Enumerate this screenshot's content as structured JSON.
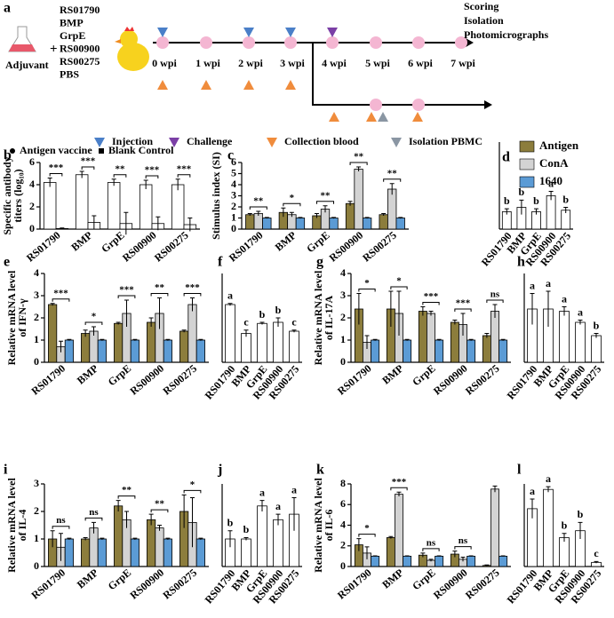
{
  "schematic": {
    "panel": "a",
    "adjuvant": "Adjuvant",
    "plus": "+",
    "vaccines": [
      "RS01790",
      "BMP",
      "GrpE",
      "RS00900",
      "RS00275",
      "PBS"
    ],
    "timepoints": [
      "0 wpi",
      "1 wpi",
      "2 wpi",
      "3 wpi",
      "4 wpi",
      "5 wpi",
      "6 wpi",
      "7 wpi"
    ],
    "endpoints": [
      "Scoring",
      "Isolation",
      "Photomicrographs"
    ],
    "legend": [
      "Injection",
      "Challenge",
      "Collection blood",
      "Isolation PBMC"
    ]
  },
  "chart_data": [
    {
      "type": "bar",
      "panel": "b",
      "ylabel": [
        "Specific antibody",
        "titers (log₁₀)"
      ],
      "categories": [
        "RS01790",
        "BMP",
        "GrpE",
        "RS00900",
        "RS00275"
      ],
      "series": [
        {
          "name": "Antigen vaccine",
          "marker": "circle",
          "color": "#ffffff",
          "values": [
            4.2,
            4.9,
            4.2,
            4.0,
            4.0
          ],
          "errors": [
            0.4,
            0.3,
            0.3,
            0.4,
            0.5
          ]
        },
        {
          "name": "Blank Control",
          "marker": "square",
          "color": "#ffffff",
          "values": [
            0.05,
            0.6,
            0.5,
            0.5,
            0.4
          ],
          "errors": [
            0.05,
            0.6,
            1.0,
            0.6,
            0.6
          ]
        }
      ],
      "ylim": [
        0,
        6
      ],
      "yticks": [
        0,
        2,
        4,
        6
      ],
      "significance": [
        "***",
        "***",
        "**",
        "***",
        "***"
      ]
    },
    {
      "type": "bar",
      "panel": "c",
      "ylabel": [
        "Stimulus index (SI)"
      ],
      "categories": [
        "RS01790",
        "BMP",
        "GrpE",
        "RS00900",
        "RS00275"
      ],
      "series": [
        {
          "name": "Antigen",
          "color": "#8c7d3c",
          "values": [
            1.3,
            1.5,
            1.2,
            2.3,
            1.3
          ],
          "errors": [
            0.1,
            0.4,
            0.2,
            0.2,
            0.1
          ]
        },
        {
          "name": "ConA",
          "color": "#d3d3d3",
          "values": [
            1.4,
            1.3,
            1.8,
            5.4,
            3.6
          ],
          "errors": [
            0.2,
            0.2,
            0.3,
            0.2,
            0.5
          ]
        },
        {
          "name": "1640",
          "color": "#5b9bd5",
          "values": [
            1.0,
            1.0,
            1.0,
            1.0,
            1.0
          ],
          "errors": [
            0.05,
            0.05,
            0.05,
            0.05,
            0.05
          ]
        }
      ],
      "ylim": [
        0,
        6
      ],
      "yticks": [
        0,
        1,
        2,
        3,
        4,
        5,
        6
      ],
      "significance": [
        "**",
        "*",
        "**",
        "**",
        "**"
      ]
    },
    {
      "type": "bar",
      "panel": "d",
      "categories": [
        "RS01790",
        "BMP",
        "GrpE",
        "RS00900",
        "RS00275"
      ],
      "color": "#ffffff",
      "values": [
        1.2,
        1.5,
        1.2,
        2.3,
        1.3
      ],
      "errors": [
        0.2,
        0.5,
        0.2,
        0.3,
        0.2
      ],
      "ylim": [
        0,
        6
      ],
      "letters": [
        "b",
        "b",
        "b",
        "a",
        "b"
      ]
    },
    {
      "type": "bar",
      "panel": "e",
      "ylabel": [
        "Relative mRNA level",
        "of IFN-γ"
      ],
      "categories": [
        "RS01790",
        "BMP",
        "GrpE",
        "RS00900",
        "RS00275"
      ],
      "series": [
        {
          "color": "#8c7d3c",
          "values": [
            2.6,
            1.3,
            1.75,
            1.8,
            1.4
          ],
          "errors": [
            0.05,
            0.15,
            0.05,
            0.2,
            0.05
          ]
        },
        {
          "color": "#d3d3d3",
          "values": [
            0.7,
            1.4,
            2.2,
            2.2,
            2.6
          ],
          "errors": [
            0.25,
            0.2,
            0.6,
            0.7,
            0.3
          ]
        },
        {
          "color": "#5b9bd5",
          "values": [
            1.0,
            1.0,
            1.0,
            1.0,
            1.0
          ],
          "errors": [
            0.03,
            0.03,
            0.03,
            0.03,
            0.03
          ]
        }
      ],
      "ylim": [
        0,
        4
      ],
      "yticks": [
        0,
        1,
        2,
        3,
        4
      ],
      "significance": [
        "***",
        "*",
        "***",
        "**",
        "***"
      ]
    },
    {
      "type": "bar",
      "panel": "f",
      "categories": [
        "RS01790",
        "BMP",
        "GrpE",
        "RS00900",
        "RS00275"
      ],
      "color": "#ffffff",
      "values": [
        2.6,
        1.3,
        1.75,
        1.8,
        1.4
      ],
      "errors": [
        0.05,
        0.15,
        0.05,
        0.2,
        0.05
      ],
      "ylim": [
        0,
        4
      ],
      "letters": [
        "a",
        "c",
        "b",
        "b",
        "c"
      ]
    },
    {
      "type": "bar",
      "panel": "g",
      "ylabel": [
        "Relative mRNA level",
        "of IL-17A"
      ],
      "categories": [
        "RS01790",
        "BMP",
        "GrpE",
        "RS00900",
        "RS00275"
      ],
      "series": [
        {
          "color": "#8c7d3c",
          "values": [
            2.4,
            2.4,
            2.3,
            1.8,
            1.2
          ],
          "errors": [
            0.7,
            0.8,
            0.2,
            0.1,
            0.1
          ]
        },
        {
          "color": "#d3d3d3",
          "values": [
            0.9,
            2.2,
            2.2,
            1.7,
            2.3
          ],
          "errors": [
            0.3,
            1.0,
            0.1,
            0.5,
            0.3
          ]
        },
        {
          "color": "#5b9bd5",
          "values": [
            1.0,
            1.0,
            1.0,
            1.0,
            1.0
          ],
          "errors": [
            0.03,
            0.03,
            0.03,
            0.03,
            0.03
          ]
        }
      ],
      "ylim": [
        0,
        4
      ],
      "yticks": [
        0,
        1,
        2,
        3,
        4
      ],
      "significance": [
        "*",
        "*",
        "***",
        "***",
        "ns"
      ]
    },
    {
      "type": "bar",
      "panel": "h",
      "categories": [
        "RS01790",
        "BMP",
        "GrpE",
        "RS00900",
        "RS00275"
      ],
      "color": "#ffffff",
      "values": [
        2.4,
        2.4,
        2.3,
        1.8,
        1.2
      ],
      "errors": [
        0.7,
        0.8,
        0.2,
        0.1,
        0.1
      ],
      "ylim": [
        0,
        4
      ],
      "letters": [
        "a",
        "a",
        "a",
        "a",
        "b"
      ]
    },
    {
      "type": "bar",
      "panel": "i",
      "ylabel": [
        "Relative mRNA level",
        "of IL-4"
      ],
      "categories": [
        "RS01790",
        "BMP",
        "GrpE",
        "RS00900",
        "RS00275"
      ],
      "series": [
        {
          "color": "#8c7d3c",
          "values": [
            1.0,
            1.0,
            2.2,
            1.7,
            2.0
          ],
          "errors": [
            0.3,
            0.05,
            0.2,
            0.2,
            0.6
          ]
        },
        {
          "color": "#d3d3d3",
          "values": [
            0.7,
            1.4,
            1.7,
            1.4,
            1.6
          ],
          "errors": [
            0.5,
            0.2,
            0.3,
            0.1,
            0.9
          ]
        },
        {
          "color": "#5b9bd5",
          "values": [
            1.0,
            1.0,
            1.0,
            1.0,
            1.0
          ],
          "errors": [
            0.03,
            0.03,
            0.03,
            0.03,
            0.03
          ]
        }
      ],
      "ylim": [
        0,
        3
      ],
      "yticks": [
        0,
        1,
        2,
        3
      ],
      "significance": [
        "ns",
        "ns",
        "**",
        "**",
        "*"
      ]
    },
    {
      "type": "bar",
      "panel": "j",
      "categories": [
        "RS01790",
        "BMP",
        "GrpE",
        "RS00900",
        "RS00275"
      ],
      "color": "#ffffff",
      "values": [
        1.0,
        1.0,
        2.2,
        1.7,
        1.9
      ],
      "errors": [
        0.3,
        0.05,
        0.2,
        0.2,
        0.6
      ],
      "ylim": [
        0,
        3
      ],
      "letters": [
        "b",
        "b",
        "a",
        "a",
        "a"
      ]
    },
    {
      "type": "bar",
      "panel": "k",
      "ylabel": [
        "Relative mRNA level",
        "of IL-6"
      ],
      "categories": [
        "RS01790",
        "BMP",
        "GrpE",
        "RS00900",
        "RS00275"
      ],
      "series": [
        {
          "color": "#8c7d3c",
          "values": [
            2.1,
            2.8,
            1.1,
            1.2,
            0.1
          ],
          "errors": [
            0.6,
            0.1,
            0.2,
            0.3,
            0.05
          ]
        },
        {
          "color": "#d3d3d3",
          "values": [
            1.3,
            7.0,
            0.6,
            0.7,
            7.5
          ],
          "errors": [
            0.6,
            0.2,
            0.1,
            0.2,
            0.3
          ]
        },
        {
          "color": "#5b9bd5",
          "values": [
            1.0,
            1.0,
            1.0,
            1.0,
            1.0
          ],
          "errors": [
            0.03,
            0.03,
            0.03,
            0.03,
            0.03
          ]
        }
      ],
      "ylim": [
        0,
        8
      ],
      "yticks": [
        0,
        2,
        4,
        6,
        8
      ],
      "significance": [
        "*",
        "***",
        "ns",
        "ns",
        null
      ]
    },
    {
      "type": "bar",
      "panel": "l",
      "categories": [
        "RS01790",
        "BMP",
        "GrpE",
        "RS00900",
        "RS00275"
      ],
      "color": "#ffffff",
      "values": [
        2.1,
        2.8,
        1.05,
        1.3,
        0.15
      ],
      "errors": [
        0.35,
        0.1,
        0.15,
        0.3,
        0.03
      ],
      "ylim": [
        0,
        3
      ],
      "letters": [
        "a",
        "a",
        "b",
        "b",
        "c"
      ]
    }
  ]
}
